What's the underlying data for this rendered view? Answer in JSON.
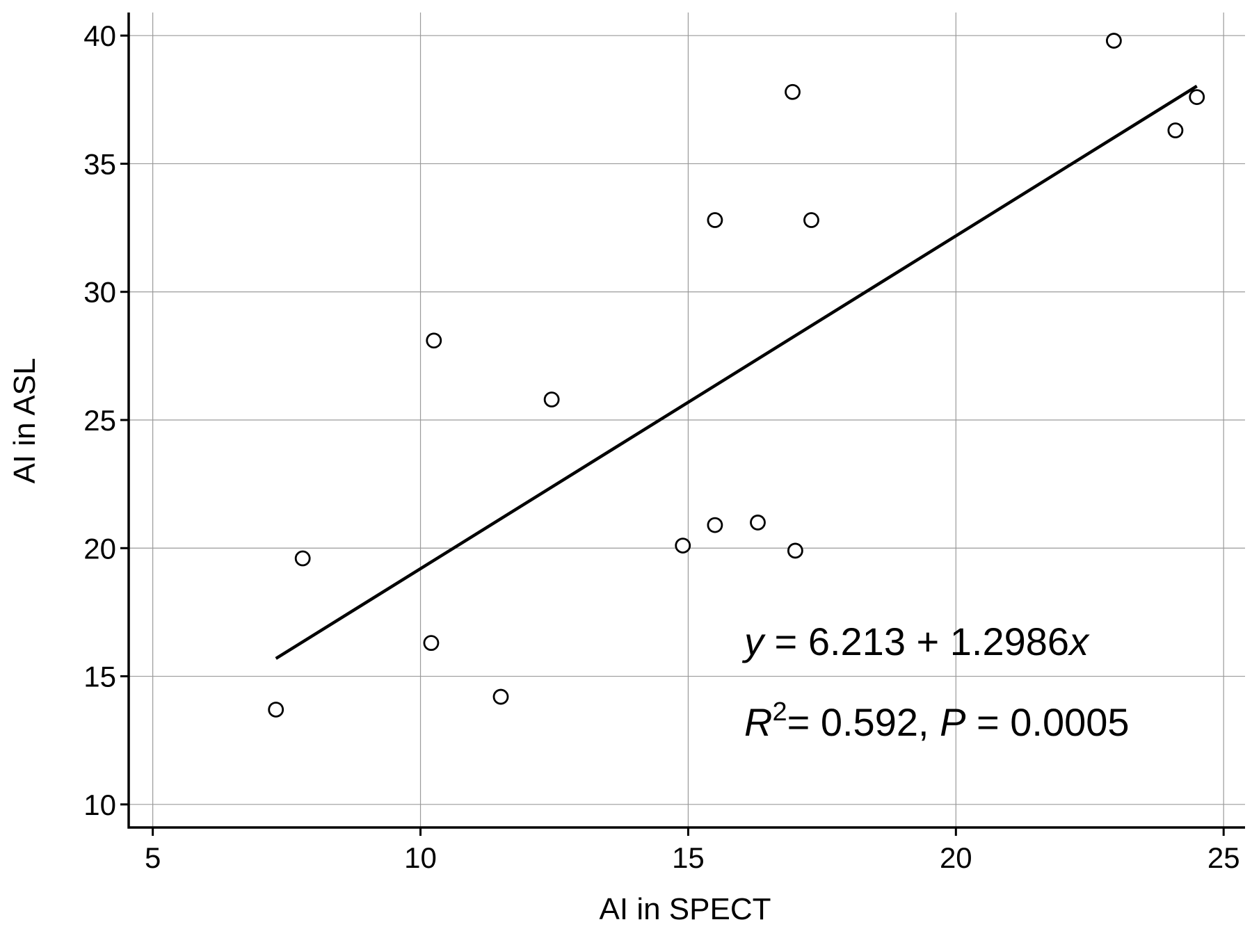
{
  "chart_data": {
    "type": "scatter",
    "title": "",
    "xlabel": "AI in SPECT",
    "ylabel": "AI in ASL",
    "xlim": [
      4.55,
      25.4
    ],
    "ylim": [
      9.1,
      40.9
    ],
    "xticks": [
      5,
      10,
      15,
      20,
      25
    ],
    "yticks": [
      10,
      15,
      20,
      25,
      30,
      35,
      40
    ],
    "grid": true,
    "points": [
      {
        "x": 7.3,
        "y": 13.7
      },
      {
        "x": 7.8,
        "y": 19.6
      },
      {
        "x": 10.2,
        "y": 16.3
      },
      {
        "x": 10.25,
        "y": 28.1
      },
      {
        "x": 11.5,
        "y": 14.2
      },
      {
        "x": 12.45,
        "y": 25.8
      },
      {
        "x": 14.9,
        "y": 20.1
      },
      {
        "x": 15.5,
        "y": 32.8
      },
      {
        "x": 15.5,
        "y": 20.9
      },
      {
        "x": 16.3,
        "y": 21.0
      },
      {
        "x": 16.95,
        "y": 37.8
      },
      {
        "x": 17.0,
        "y": 19.9
      },
      {
        "x": 17.3,
        "y": 32.8
      },
      {
        "x": 22.95,
        "y": 39.8
      },
      {
        "x": 24.1,
        "y": 36.3
      },
      {
        "x": 24.5,
        "y": 37.6
      }
    ],
    "fit_line": {
      "intercept": 6.213,
      "slope": 1.2986,
      "x_range": [
        7.3,
        24.5
      ]
    },
    "annotations": {
      "equation": {
        "y_var": "y",
        "body": " = 6.213 + 1.2986",
        "x_var": "x"
      },
      "stats": {
        "r_var": "R",
        "r_exp": "2",
        "r_body": "= 0.592, ",
        "p_var": "P",
        "p_body": " = 0.0005"
      }
    }
  }
}
